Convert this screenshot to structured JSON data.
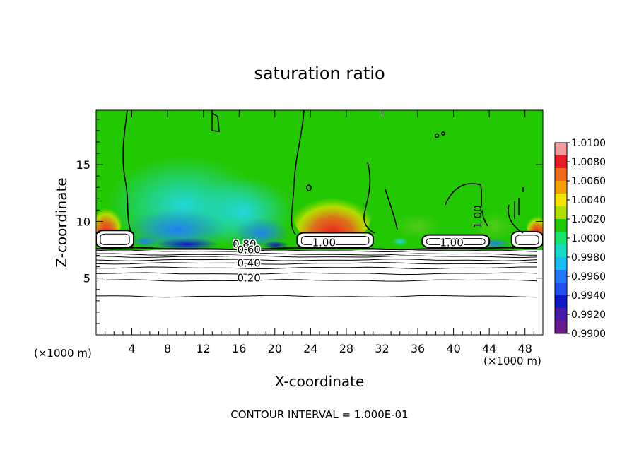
{
  "chart_data": {
    "type": "heatmap",
    "title": "saturation ratio",
    "xlabel": "X-coordinate",
    "ylabel": "Z-coordinate",
    "x_unit": "(×1000 m)",
    "y_unit": "(×1000 m)",
    "xlim": [
      0,
      50
    ],
    "ylim": [
      0,
      19.8
    ],
    "x_ticks": [
      4,
      8,
      12,
      16,
      20,
      24,
      28,
      32,
      36,
      40,
      44,
      48
    ],
    "y_ticks": [
      5,
      10,
      15
    ],
    "footer": "CONTOUR INTERVAL = 1.000E-01",
    "colorbar": {
      "labels": [
        "1.0100",
        "1.0080",
        "1.0060",
        "1.0040",
        "1.0020",
        "1.0000",
        "0.9980",
        "0.9960",
        "0.9940",
        "0.9920",
        "0.9900"
      ],
      "colors": [
        "#f49a9a",
        "#ec1c24",
        "#f06a1c",
        "#f5a000",
        "#f2e500",
        "#b0e000",
        "#22c900",
        "#17e46a",
        "#16dcc4",
        "#18c0f2",
        "#1f78ff",
        "#2050ee",
        "#1018c8",
        "#4a1aa8",
        "#6b1a90"
      ]
    },
    "contour_labels": [
      {
        "text": "0.80",
        "x": 16.6,
        "y": 7.7
      },
      {
        "text": "0.60",
        "x": 17.1,
        "y": 7.2
      },
      {
        "text": "0.40",
        "x": 17.1,
        "y": 6.0
      },
      {
        "text": "0.20",
        "x": 17.1,
        "y": 4.7
      },
      {
        "text": "1.00",
        "x": 25.5,
        "y": 7.8
      },
      {
        "text": "1.00",
        "x": 39.8,
        "y": 7.8
      },
      {
        "text": "1.00",
        "x": 43.1,
        "y": 10.4
      }
    ],
    "stable_layer_levels": [
      7.6,
      7.4,
      7.1,
      6.9,
      6.6,
      6.3,
      5.9,
      5.4,
      4.8,
      3.4
    ],
    "cloud_layers": [
      {
        "x0": 0.0,
        "x1": 4.2,
        "y0": 7.7,
        "y1": 9.2
      },
      {
        "x0": 22.5,
        "x1": 31.0,
        "y0": 7.7,
        "y1": 9.0
      },
      {
        "x0": 36.5,
        "x1": 44.0,
        "y0": 7.7,
        "y1": 8.8
      },
      {
        "x0": 46.5,
        "x1": 50.0,
        "y0": 7.7,
        "y1": 9.1
      }
    ]
  }
}
